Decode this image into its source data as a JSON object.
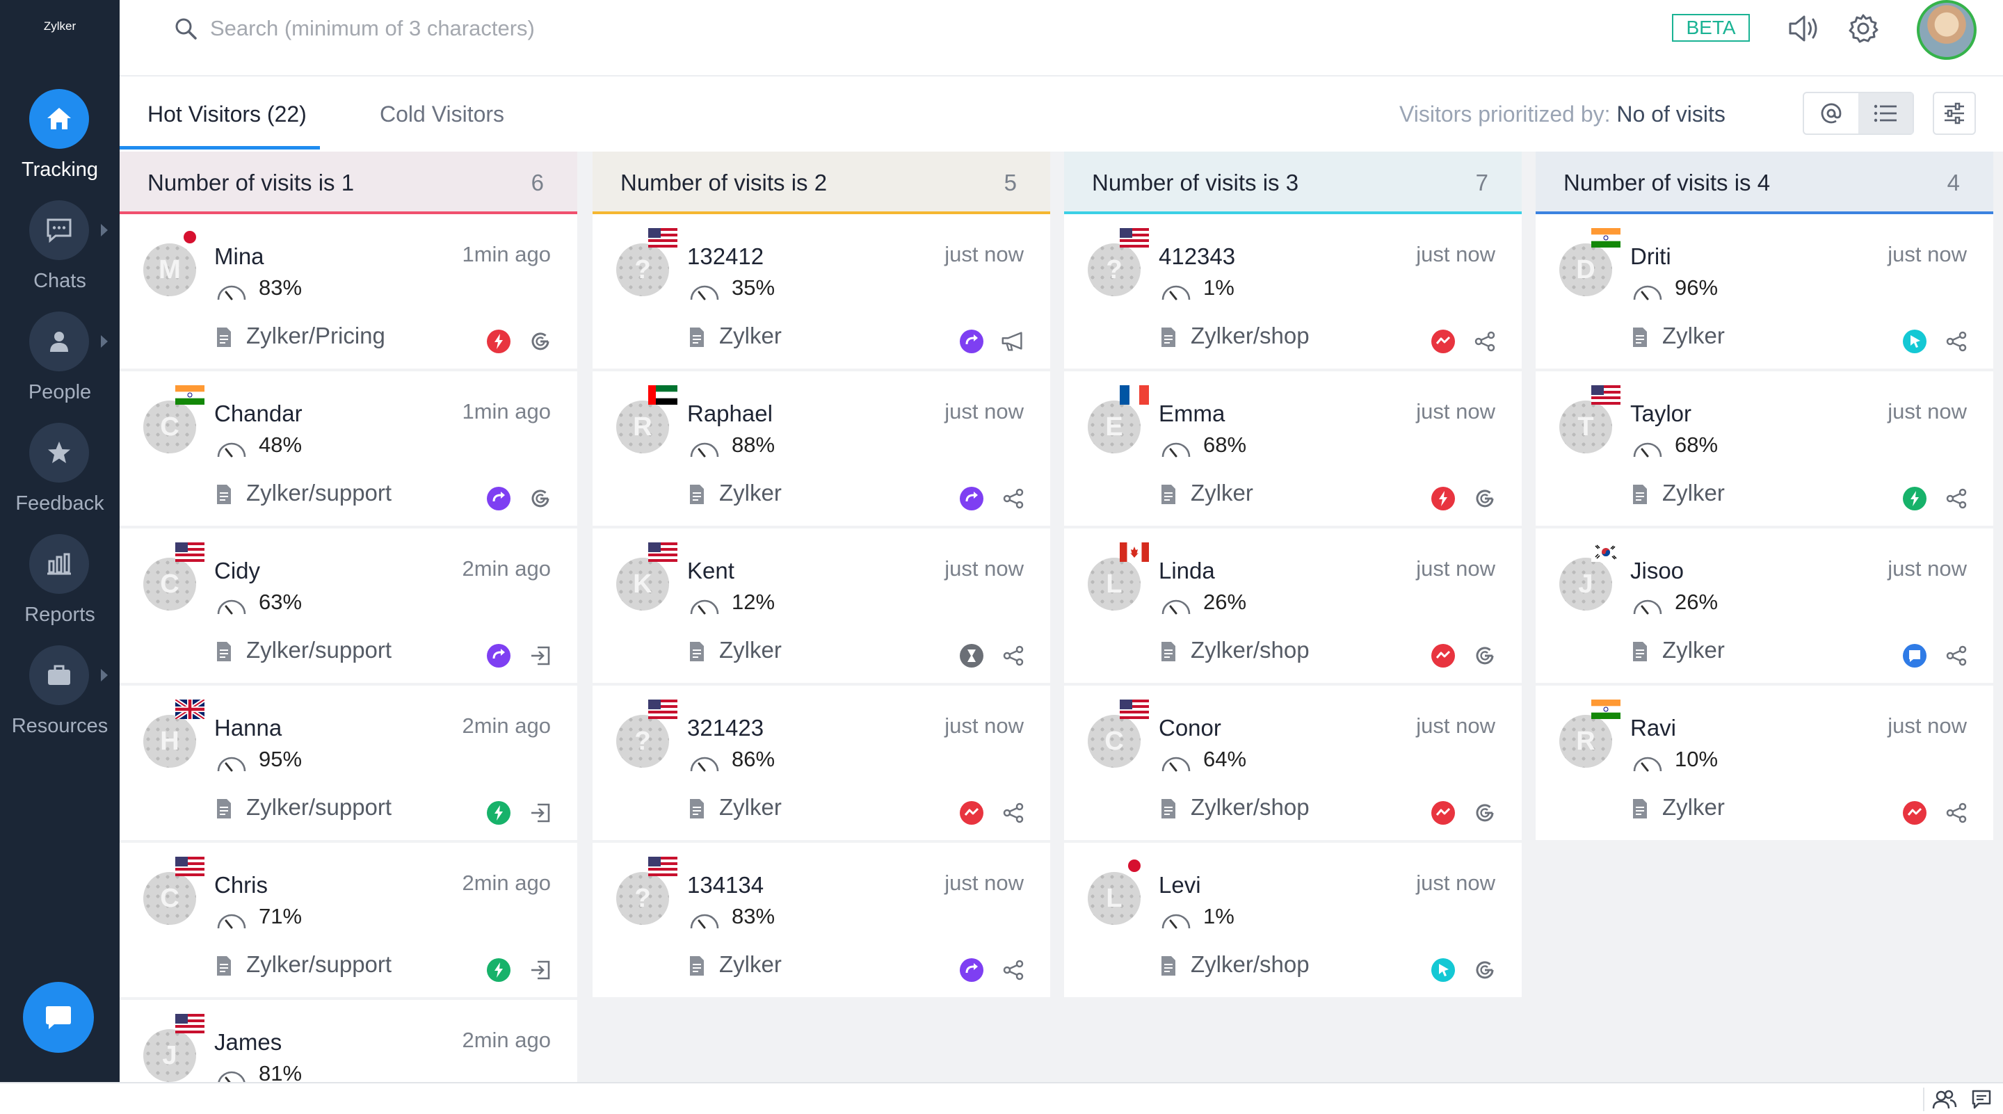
{
  "app": {
    "logo_text": "Zylker"
  },
  "search": {
    "placeholder": "Search (minimum of 3 characters)"
  },
  "header": {
    "beta": "BETA"
  },
  "nav": [
    {
      "label": "Tracking",
      "icon": "home-icon",
      "active": true
    },
    {
      "label": "Chats",
      "icon": "chat-bubble-icon",
      "active": false
    },
    {
      "label": "People",
      "icon": "person-icon",
      "active": false
    },
    {
      "label": "Feedback",
      "icon": "star-icon",
      "active": false
    },
    {
      "label": "Reports",
      "icon": "bar-chart-icon",
      "active": false
    },
    {
      "label": "Resources",
      "icon": "briefcase-icon",
      "active": false
    }
  ],
  "tabs": [
    {
      "label": "Hot Visitors (22)",
      "active": true
    },
    {
      "label": "Cold Visitors",
      "active": false
    }
  ],
  "priority": {
    "prefix": "Visitors prioritized by:",
    "value": "No of visits"
  },
  "colors": {
    "accent": "#1f8cf0",
    "sidebar": "#1b2636",
    "beta": "#1ab394"
  },
  "columns": [
    {
      "title": "Number of visits is 1",
      "count": "6",
      "color": "#f0506e",
      "cards": [
        {
          "name": "Mina",
          "initial": "M",
          "flag": "jp",
          "time": "1min ago",
          "score": "83%",
          "page": "Zylker/Pricing",
          "source": "red-bolt-icon",
          "action": "google-icon"
        },
        {
          "name": "Chandar",
          "initial": "C",
          "flag": "in",
          "time": "1min ago",
          "score": "48%",
          "page": "Zylker/support",
          "source": "purple-redirect-icon",
          "action": "google-icon"
        },
        {
          "name": "Cidy",
          "initial": "C",
          "flag": "us",
          "time": "2min ago",
          "score": "63%",
          "page": "Zylker/support",
          "source": "purple-redirect-icon",
          "action": "login-icon"
        },
        {
          "name": "Hanna",
          "initial": "H",
          "flag": "uk",
          "time": "2min ago",
          "score": "95%",
          "page": "Zylker/support",
          "source": "green-bolt-icon",
          "action": "login-icon"
        },
        {
          "name": "Chris",
          "initial": "C",
          "flag": "us",
          "time": "2min ago",
          "score": "71%",
          "page": "Zylker/support",
          "source": "green-bolt-icon",
          "action": "login-icon"
        },
        {
          "name": "James",
          "initial": "J",
          "flag": "us",
          "time": "2min ago",
          "score": "81%",
          "page": "",
          "source": "",
          "action": ""
        }
      ]
    },
    {
      "title": "Number of visits is 2",
      "count": "5",
      "color": "#f5b731",
      "cards": [
        {
          "name": "132412",
          "initial": "?",
          "flag": "us",
          "time": "just now",
          "score": "35%",
          "page": "Zylker",
          "source": "purple-redirect-icon",
          "action": "megaphone-icon"
        },
        {
          "name": "Raphael",
          "initial": "R",
          "flag": "ae",
          "time": "just now",
          "score": "88%",
          "page": "Zylker",
          "source": "purple-redirect-icon",
          "action": "share-icon"
        },
        {
          "name": "Kent",
          "initial": "K",
          "flag": "us",
          "time": "just now",
          "score": "12%",
          "page": "Zylker",
          "source": "gray-hourglass-icon",
          "action": "share-icon"
        },
        {
          "name": "321423",
          "initial": "?",
          "flag": "us",
          "time": "just now",
          "score": "86%",
          "page": "Zylker",
          "source": "red-trend-icon",
          "action": "share-icon"
        },
        {
          "name": "134134",
          "initial": "?",
          "flag": "us",
          "time": "just now",
          "score": "83%",
          "page": "Zylker",
          "source": "purple-redirect-icon",
          "action": "share-icon"
        }
      ]
    },
    {
      "title": "Number of visits is 3",
      "count": "7",
      "color": "#3bd0e6",
      "cards": [
        {
          "name": "412343",
          "initial": "?",
          "flag": "us",
          "time": "just now",
          "score": "1%",
          "page": "Zylker/shop",
          "source": "red-trend-icon",
          "action": "share-icon"
        },
        {
          "name": "Emma",
          "initial": "E",
          "flag": "fr",
          "time": "just now",
          "score": "68%",
          "page": "Zylker",
          "source": "red-bolt-icon",
          "action": "google-icon"
        },
        {
          "name": "Linda",
          "initial": "L",
          "flag": "ca",
          "time": "just now",
          "score": "26%",
          "page": "Zylker/shop",
          "source": "red-trend-icon",
          "action": "google-icon"
        },
        {
          "name": "Conor",
          "initial": "C",
          "flag": "us",
          "time": "just now",
          "score": "64%",
          "page": "Zylker/shop",
          "source": "red-trend-icon",
          "action": "google-icon"
        },
        {
          "name": "Levi",
          "initial": "L",
          "flag": "jp",
          "time": "just now",
          "score": "1%",
          "page": "Zylker/shop",
          "source": "cyan-cursor-icon",
          "action": "google-icon"
        }
      ]
    },
    {
      "title": "Number of visits is 4",
      "count": "4",
      "color": "#3b82e0",
      "cards": [
        {
          "name": "Driti",
          "initial": "D",
          "flag": "in",
          "time": "just now",
          "score": "96%",
          "page": "Zylker",
          "source": "cyan-cursor-icon",
          "action": "share-icon"
        },
        {
          "name": "Taylor",
          "initial": "T",
          "flag": "us",
          "time": "just now",
          "score": "68%",
          "page": "Zylker",
          "source": "green-bolt-icon",
          "action": "share-icon"
        },
        {
          "name": "Jisoo",
          "initial": "J",
          "flag": "kr",
          "time": "just now",
          "score": "26%",
          "page": "Zylker",
          "source": "blue-chat-icon",
          "action": "share-icon"
        },
        {
          "name": "Ravi",
          "initial": "R",
          "flag": "in",
          "time": "just now",
          "score": "10%",
          "page": "Zylker",
          "source": "red-trend-icon",
          "action": "share-icon"
        }
      ]
    }
  ]
}
